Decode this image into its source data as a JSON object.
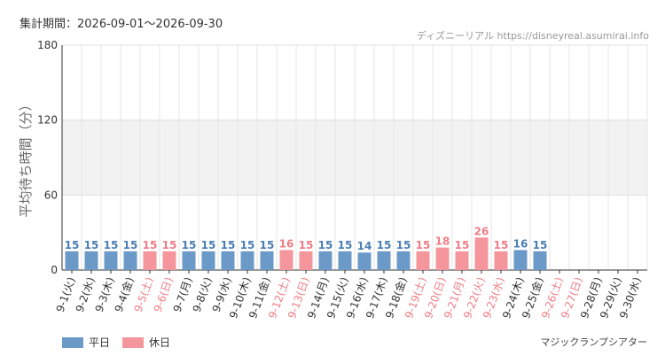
{
  "header": {
    "period": "集計期間：2026-09-01～2026-09-30",
    "source": "ディズニーリアル https://disneyreal.asumirai.info"
  },
  "footer": {
    "venue": "マジックランプシアター"
  },
  "colors": {
    "weekday": "#6b9ac8",
    "holiday": "#f4969b",
    "weekday_label": "#4a7fb5",
    "holiday_label": "#f07c86"
  },
  "chart_data": {
    "type": "bar",
    "ylabel": "平均待ち時間（分）",
    "ylim": [
      0,
      180
    ],
    "yticks": [
      0,
      60,
      120,
      180
    ],
    "legend": {
      "position": "bottom-left",
      "entries": [
        "平日",
        "休日"
      ]
    },
    "categories": [
      "9-1(火)",
      "9-2(水)",
      "9-3(木)",
      "9-4(金)",
      "9-5(土)",
      "9-6(日)",
      "9-7(月)",
      "9-8(火)",
      "9-9(水)",
      "9-10(木)",
      "9-11(金)",
      "9-12(土)",
      "9-13(日)",
      "9-14(月)",
      "9-15(火)",
      "9-16(水)",
      "9-17(木)",
      "9-18(金)",
      "9-19(土)",
      "9-20(日)",
      "9-21(月)",
      "9-22(火)",
      "9-23(水)",
      "9-24(木)",
      "9-25(金)",
      "9-26(土)",
      "9-27(日)",
      "9-28(月)",
      "9-29(火)",
      "9-30(水)"
    ],
    "values": [
      15,
      15,
      15,
      15,
      15,
      15,
      15,
      15,
      15,
      15,
      15,
      16,
      15,
      15,
      15,
      14,
      15,
      15,
      15,
      18,
      15,
      26,
      15,
      16,
      15,
      null,
      null,
      null,
      null,
      null
    ],
    "day_type": [
      "平日",
      "平日",
      "平日",
      "平日",
      "休日",
      "休日",
      "平日",
      "平日",
      "平日",
      "平日",
      "平日",
      "休日",
      "休日",
      "平日",
      "平日",
      "平日",
      "平日",
      "平日",
      "休日",
      "休日",
      "休日",
      "休日",
      "休日",
      "平日",
      "平日",
      "休日",
      "休日",
      "平日",
      "平日",
      "平日"
    ]
  }
}
